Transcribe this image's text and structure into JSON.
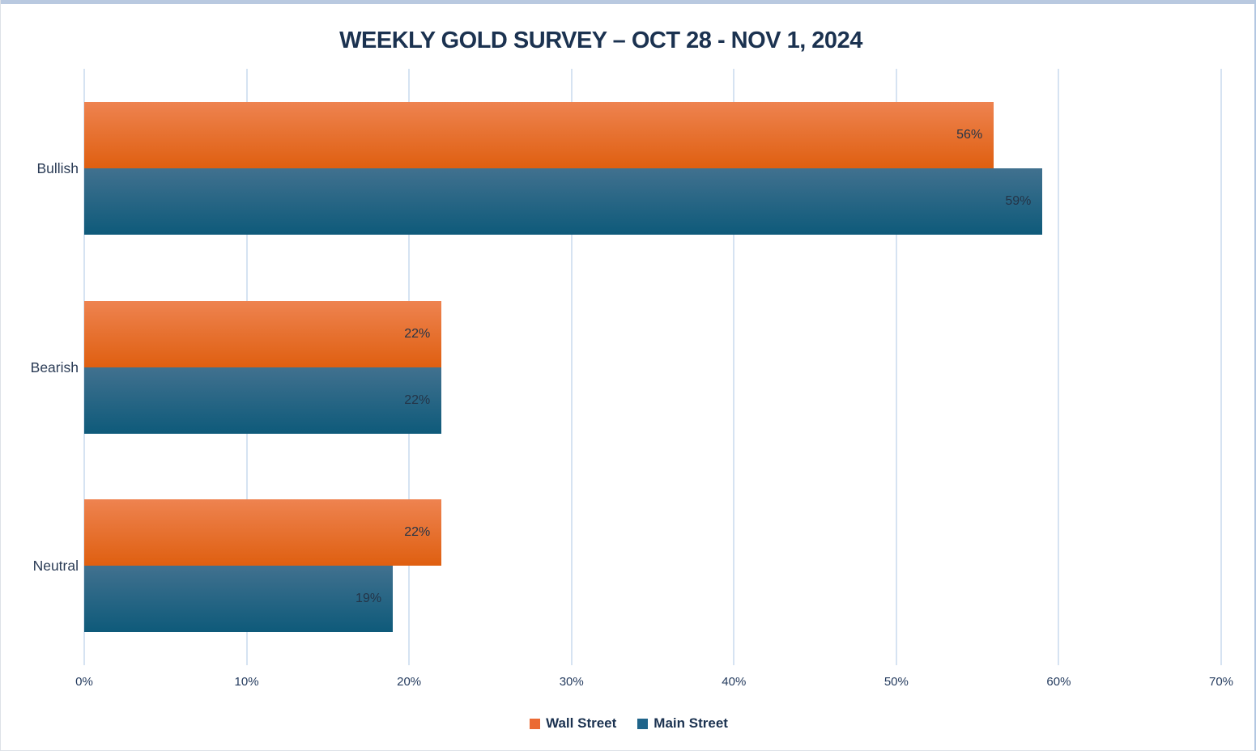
{
  "chart_data": {
    "type": "bar",
    "orientation": "horizontal",
    "title": "WEEKLY GOLD SURVEY – OCT 28 - NOV 1, 2024",
    "categories": [
      "Bullish",
      "Bearish",
      "Neutral"
    ],
    "series": [
      {
        "name": "Wall Street",
        "values": [
          56,
          22,
          22
        ],
        "data_labels": [
          "56%",
          "22%",
          "22%"
        ],
        "gradient_top": "#ee8350",
        "gradient_bottom": "#df5f10",
        "legend_color": "#eb6a33"
      },
      {
        "name": "Main Street",
        "values": [
          59,
          22,
          19
        ],
        "data_labels": [
          "59%",
          "22%",
          "19%"
        ],
        "gradient_top": "#41718f",
        "gradient_bottom": "#0e5a7a",
        "legend_color": "#1f648a"
      }
    ],
    "x_ticks": [
      "0%",
      "10%",
      "20%",
      "30%",
      "40%",
      "50%",
      "60%",
      "70%"
    ],
    "xlim": [
      0,
      70
    ],
    "xlabel": "",
    "ylabel": "",
    "grid": true,
    "gridline_color": "#d6e3f2",
    "legend_position": "bottom",
    "title_color": "#1b3250",
    "label_color": "#243447"
  }
}
